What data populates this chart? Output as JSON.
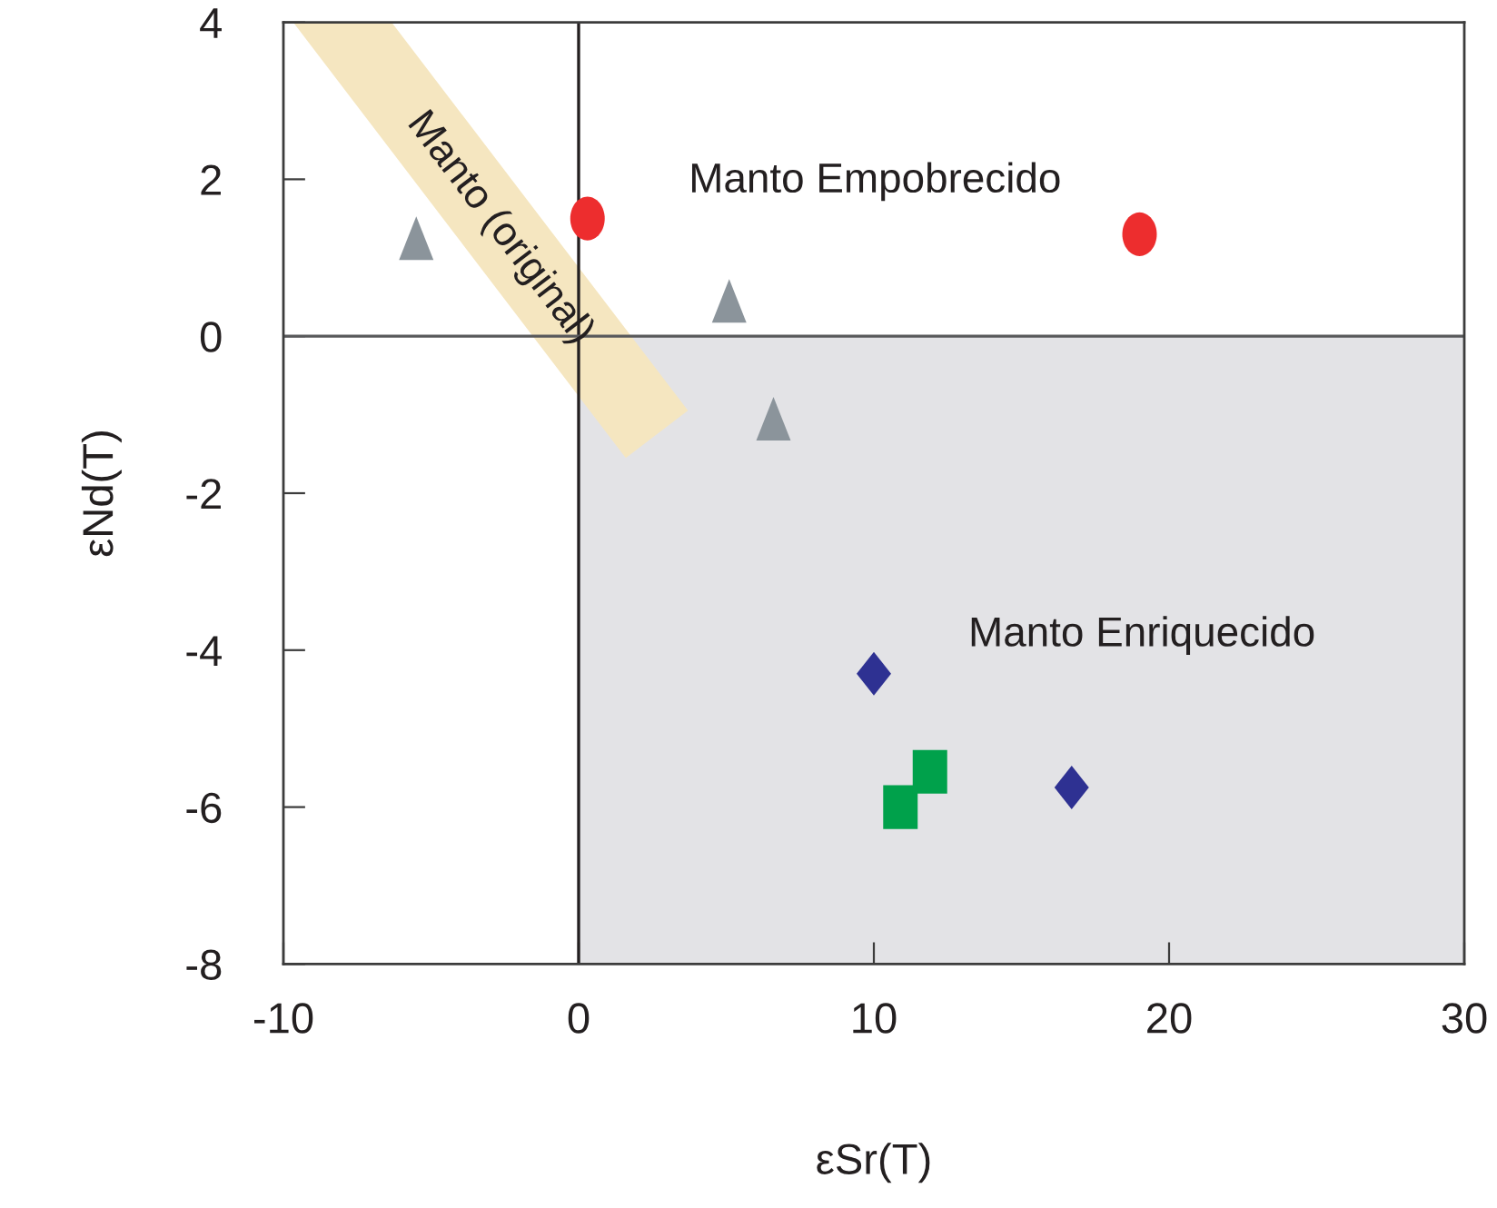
{
  "chart_data": {
    "type": "scatter",
    "xlabel": "εSr(T)",
    "ylabel": "εNd(T)",
    "xlim": [
      -10,
      30
    ],
    "ylim": [
      -8,
      4
    ],
    "xticks": [
      -10,
      0,
      10,
      20,
      30
    ],
    "yticks": [
      -8,
      -6,
      -4,
      -2,
      0,
      2,
      4
    ],
    "ref_lines": [
      {
        "axis": "x",
        "value": 0,
        "color": "#231f20"
      },
      {
        "axis": "y",
        "value": 0,
        "color": "#58595b"
      }
    ],
    "annotations": [
      "Manto Empobrecido",
      "Manto Enriquecido"
    ],
    "series": [
      {
        "type": "area",
        "color": "#e3e3e6",
        "x": [
          0,
          30
        ],
        "values": [
          -8,
          -8
        ]
      },
      {
        "type": "line",
        "name": "Manto (original)",
        "color": "#f5e6c0",
        "x": [
          -8.0,
          2.65
        ],
        "values": [
          4,
          -1.25
        ]
      },
      {
        "marker": "circle",
        "color": "#ed2d2e",
        "x": [
          0.3,
          19.0
        ],
        "values": [
          1.5,
          1.3
        ]
      },
      {
        "marker": "triangle",
        "color": "#8b949b",
        "x": [
          -5.5,
          5.1,
          6.6
        ],
        "values": [
          1.25,
          0.45,
          -1.05
        ]
      },
      {
        "marker": "diamond",
        "color": "#2e3192",
        "x": [
          10.0,
          16.7
        ],
        "values": [
          -4.3,
          -5.75
        ]
      },
      {
        "marker": "square",
        "color": "#00a14b",
        "x": [
          10.9,
          11.9
        ],
        "values": [
          -6.0,
          -5.55
        ]
      }
    ]
  }
}
